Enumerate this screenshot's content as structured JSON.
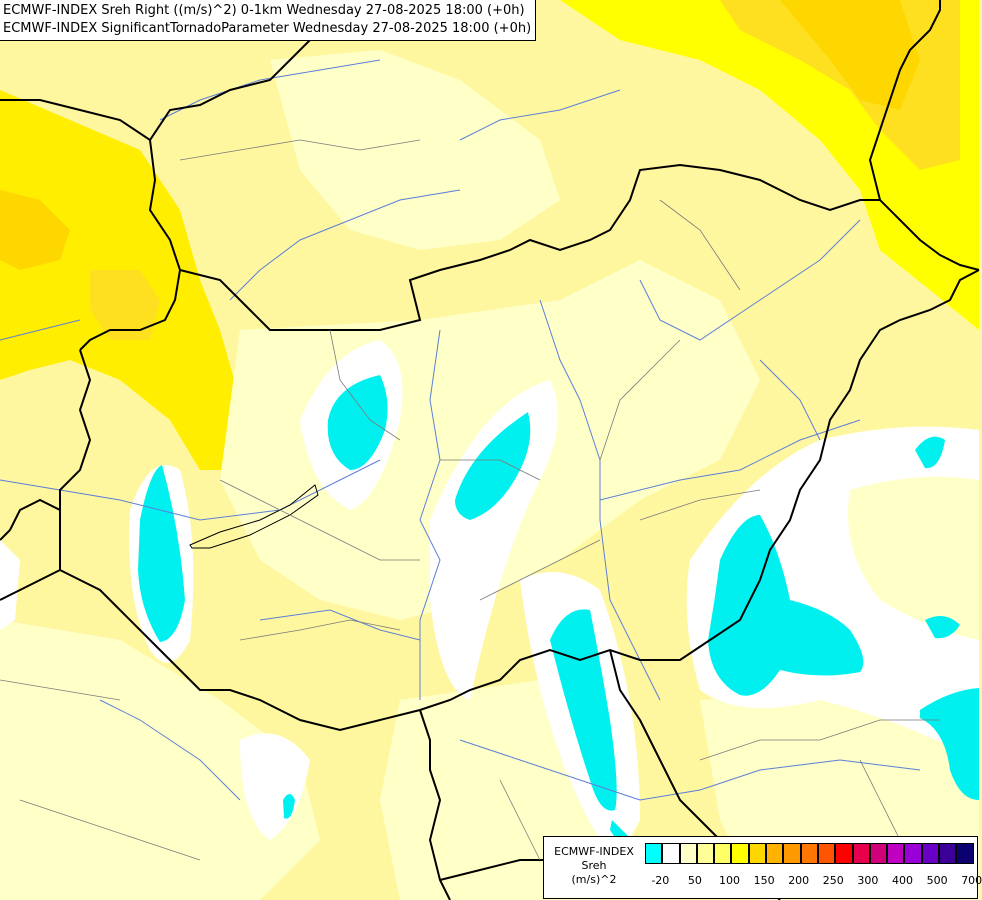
{
  "titles": {
    "line1": "ECMWF-INDEX Sreh Right ((m/s)^2) 0-1km Wednesday 27-08-2025 18:00 (+0h)",
    "line2": "ECMWF-INDEX SignificantTornadoParameter Wednesday 27-08-2025 18:00 (+0h)"
  },
  "legend": {
    "line1": "ECMWF-INDEX",
    "line2": "Sreh",
    "line3": "(m/s)^2",
    "colors": [
      "#00ffff",
      "#ffffff",
      "#ffffc8",
      "#ffff9a",
      "#ffff66",
      "#ffff00",
      "#ffd700",
      "#ffb300",
      "#ff9900",
      "#ff7700",
      "#ff5500",
      "#ff0000",
      "#e8004e",
      "#d0007a",
      "#c000c0",
      "#9a00d8",
      "#6a00c8",
      "#3a0098",
      "#0a0070"
    ],
    "ticks": [
      {
        "label": "-20",
        "index": 1
      },
      {
        "label": "50",
        "index": 3
      },
      {
        "label": "100",
        "index": 5
      },
      {
        "label": "150",
        "index": 7
      },
      {
        "label": "200",
        "index": 9
      },
      {
        "label": "250",
        "index": 11
      },
      {
        "label": "300",
        "index": 13
      },
      {
        "label": "400",
        "index": 15
      },
      {
        "label": "500",
        "index": 17
      },
      {
        "label": "700",
        "index": 19
      }
    ]
  },
  "colors": {
    "cyan": "#00f0f0",
    "white": "#ffffff",
    "pale_yellow": "#ffffc8",
    "light_yellow": "#fff7a0",
    "yellow": "#ffff66",
    "bright_yellow": "#ffef00",
    "gold": "#ffd700",
    "border": "#000000",
    "river": "#5b7fd8"
  }
}
